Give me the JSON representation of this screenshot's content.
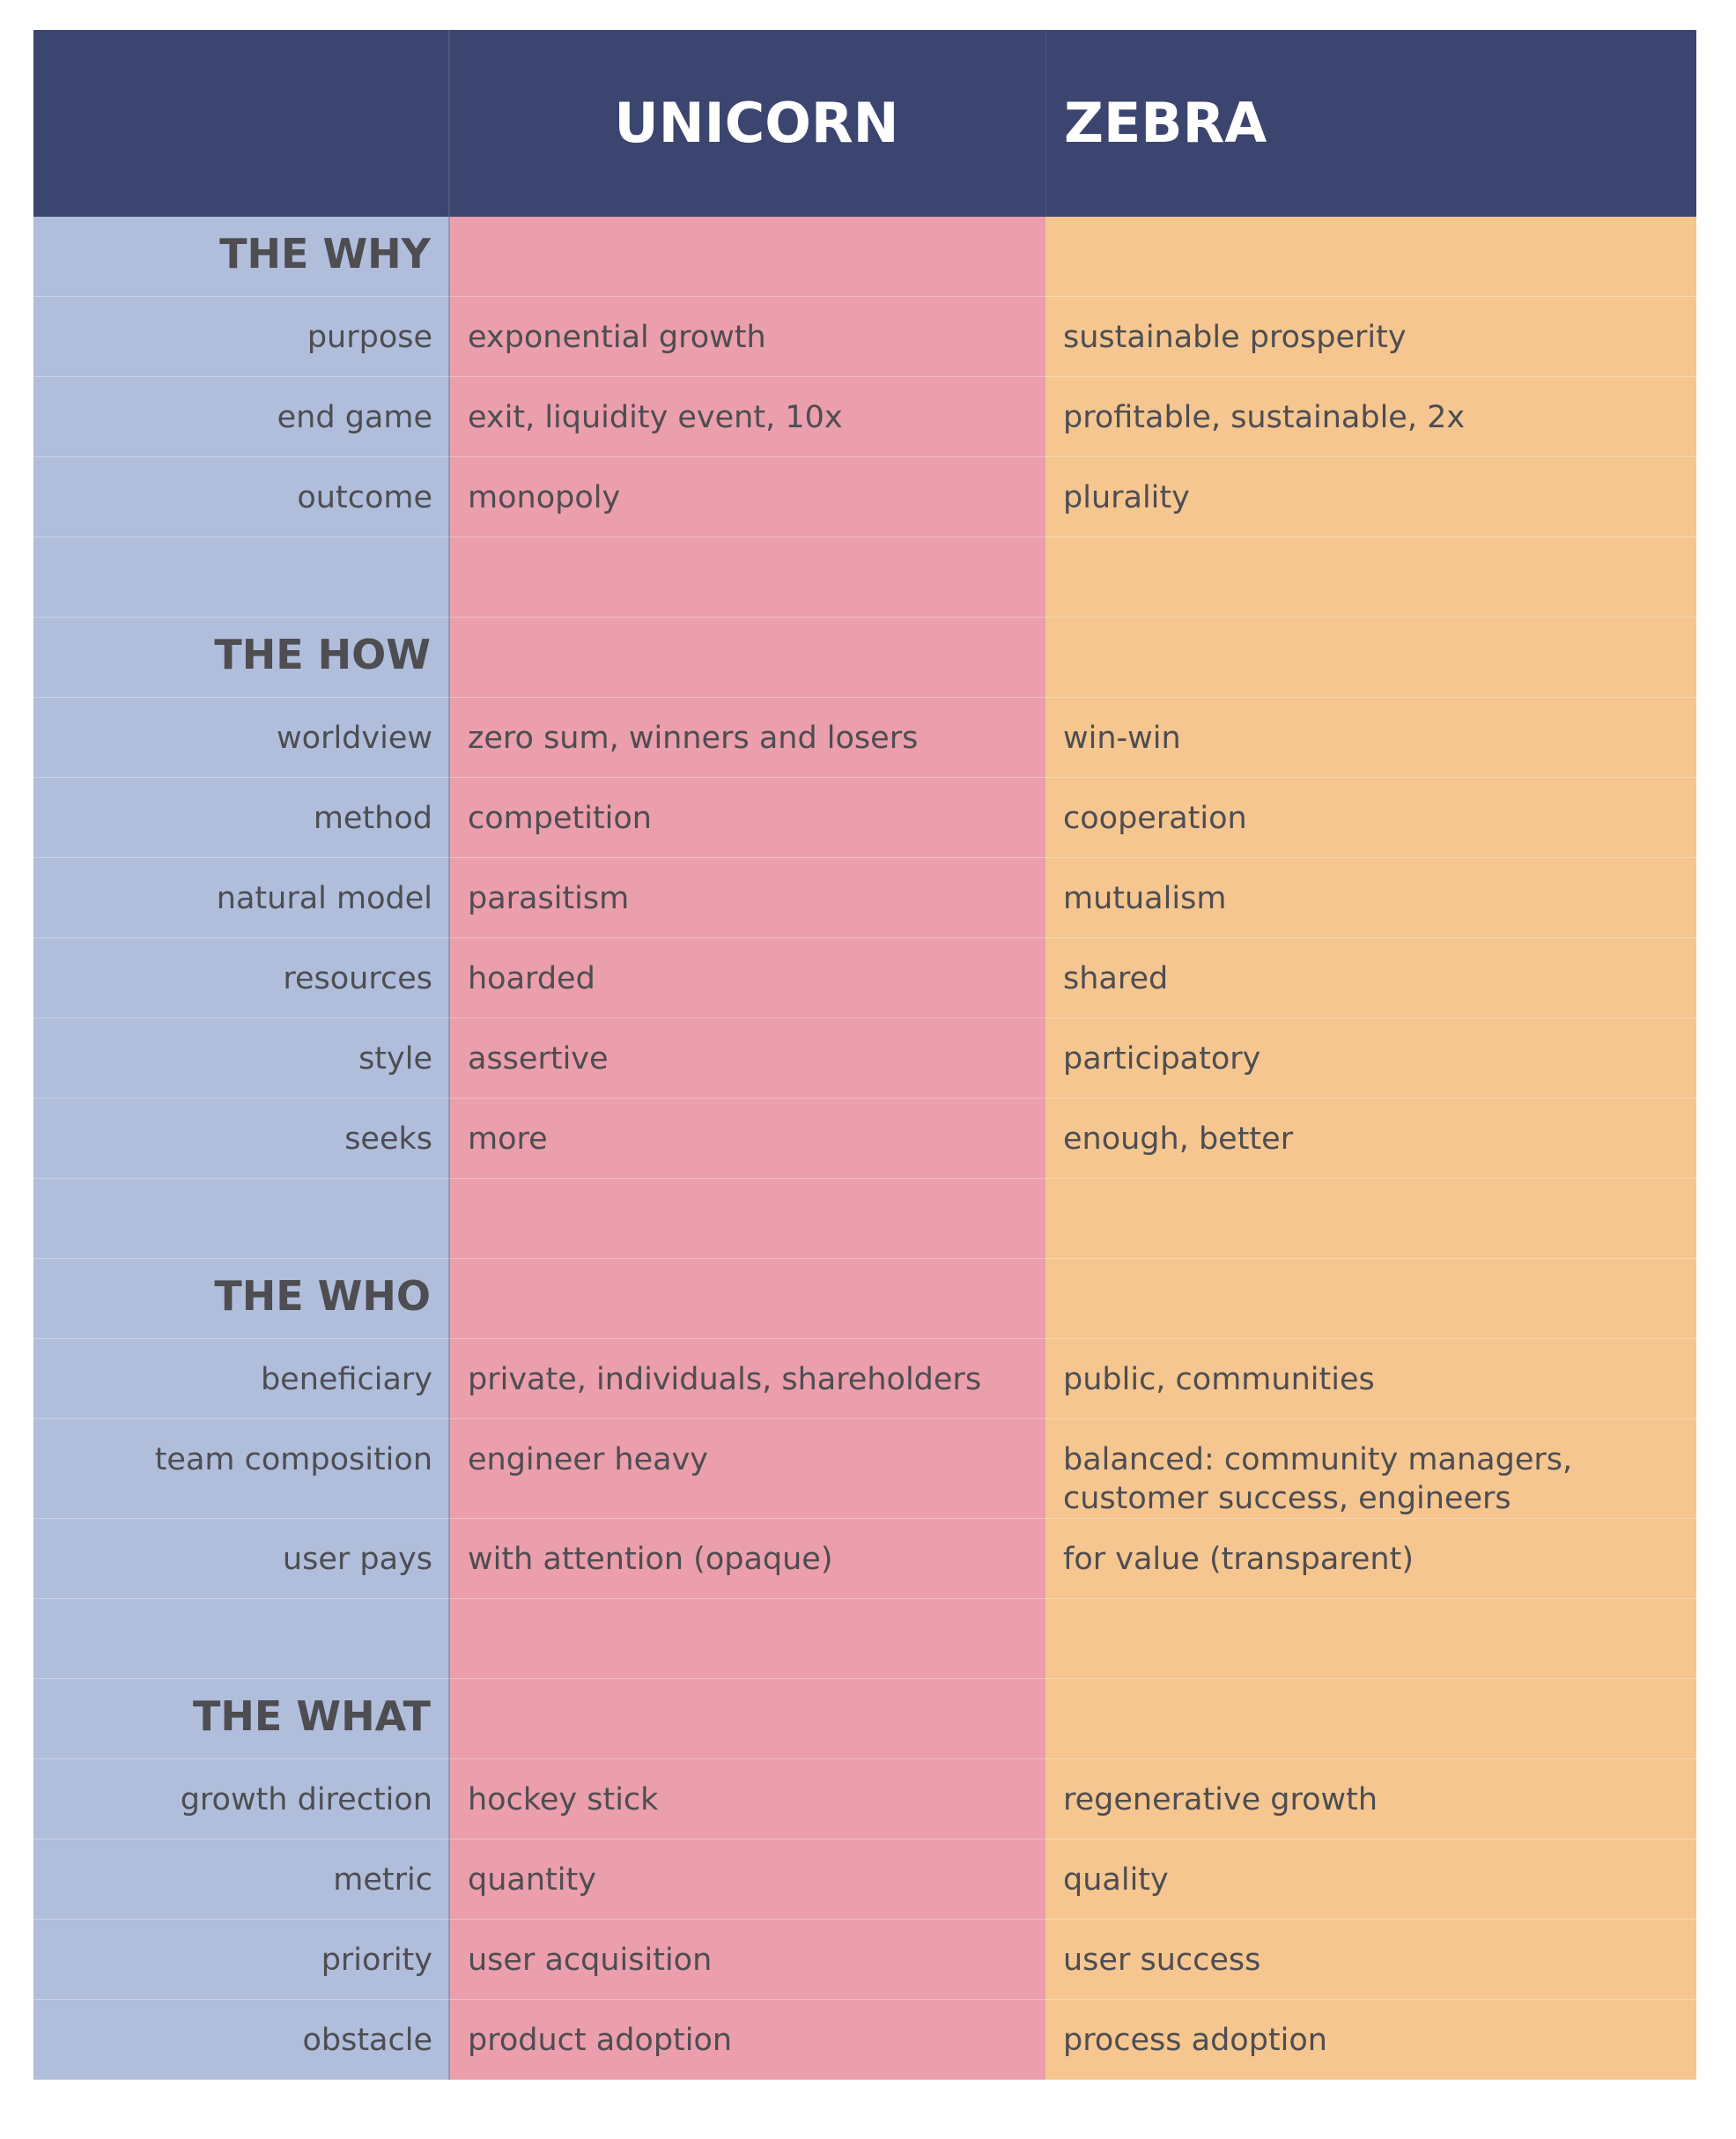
{
  "header": {
    "unicorn": "UNICORN",
    "zebra": "ZEBRA"
  },
  "sections": [
    {
      "title": "THE WHY",
      "rows": [
        {
          "label": "purpose",
          "unicorn": "exponential growth",
          "zebra": "sustainable prosperity"
        },
        {
          "label": "end game",
          "unicorn": "exit, liquidity event, 10x",
          "zebra": "profitable, sustainable, 2x"
        },
        {
          "label": "outcome",
          "unicorn": "monopoly",
          "zebra": "plurality"
        }
      ]
    },
    {
      "title": "THE HOW",
      "rows": [
        {
          "label": "worldview",
          "unicorn": "zero sum, winners and losers",
          "zebra": "win-win"
        },
        {
          "label": "method",
          "unicorn": "competition",
          "zebra": "cooperation"
        },
        {
          "label": "natural model",
          "unicorn": "parasitism",
          "zebra": "mutualism"
        },
        {
          "label": "resources",
          "unicorn": "hoarded",
          "zebra": "shared"
        },
        {
          "label": "style",
          "unicorn": "assertive",
          "zebra": "participatory"
        },
        {
          "label": "seeks",
          "unicorn": "more",
          "zebra": "enough, better"
        }
      ]
    },
    {
      "title": "THE WHO",
      "rows": [
        {
          "label": "beneficiary",
          "unicorn": "private, individuals, shareholders",
          "zebra": "public, communities"
        },
        {
          "label": "team composition",
          "unicorn": "engineer heavy",
          "zebra": "balanced: community managers, customer success, engineers"
        },
        {
          "label": "user pays",
          "unicorn": "with attention (opaque)",
          "zebra": "for value (transparent)"
        }
      ]
    },
    {
      "title": "THE WHAT",
      "rows": [
        {
          "label": "growth direction",
          "unicorn": "hockey stick",
          "zebra": "regenerative growth"
        },
        {
          "label": "metric",
          "unicorn": "quantity",
          "zebra": "quality"
        },
        {
          "label": "priority",
          "unicorn": "user acquisition",
          "zebra": "user success"
        },
        {
          "label": "obstacle",
          "unicorn": "product adoption",
          "zebra": "process adoption"
        }
      ]
    }
  ]
}
